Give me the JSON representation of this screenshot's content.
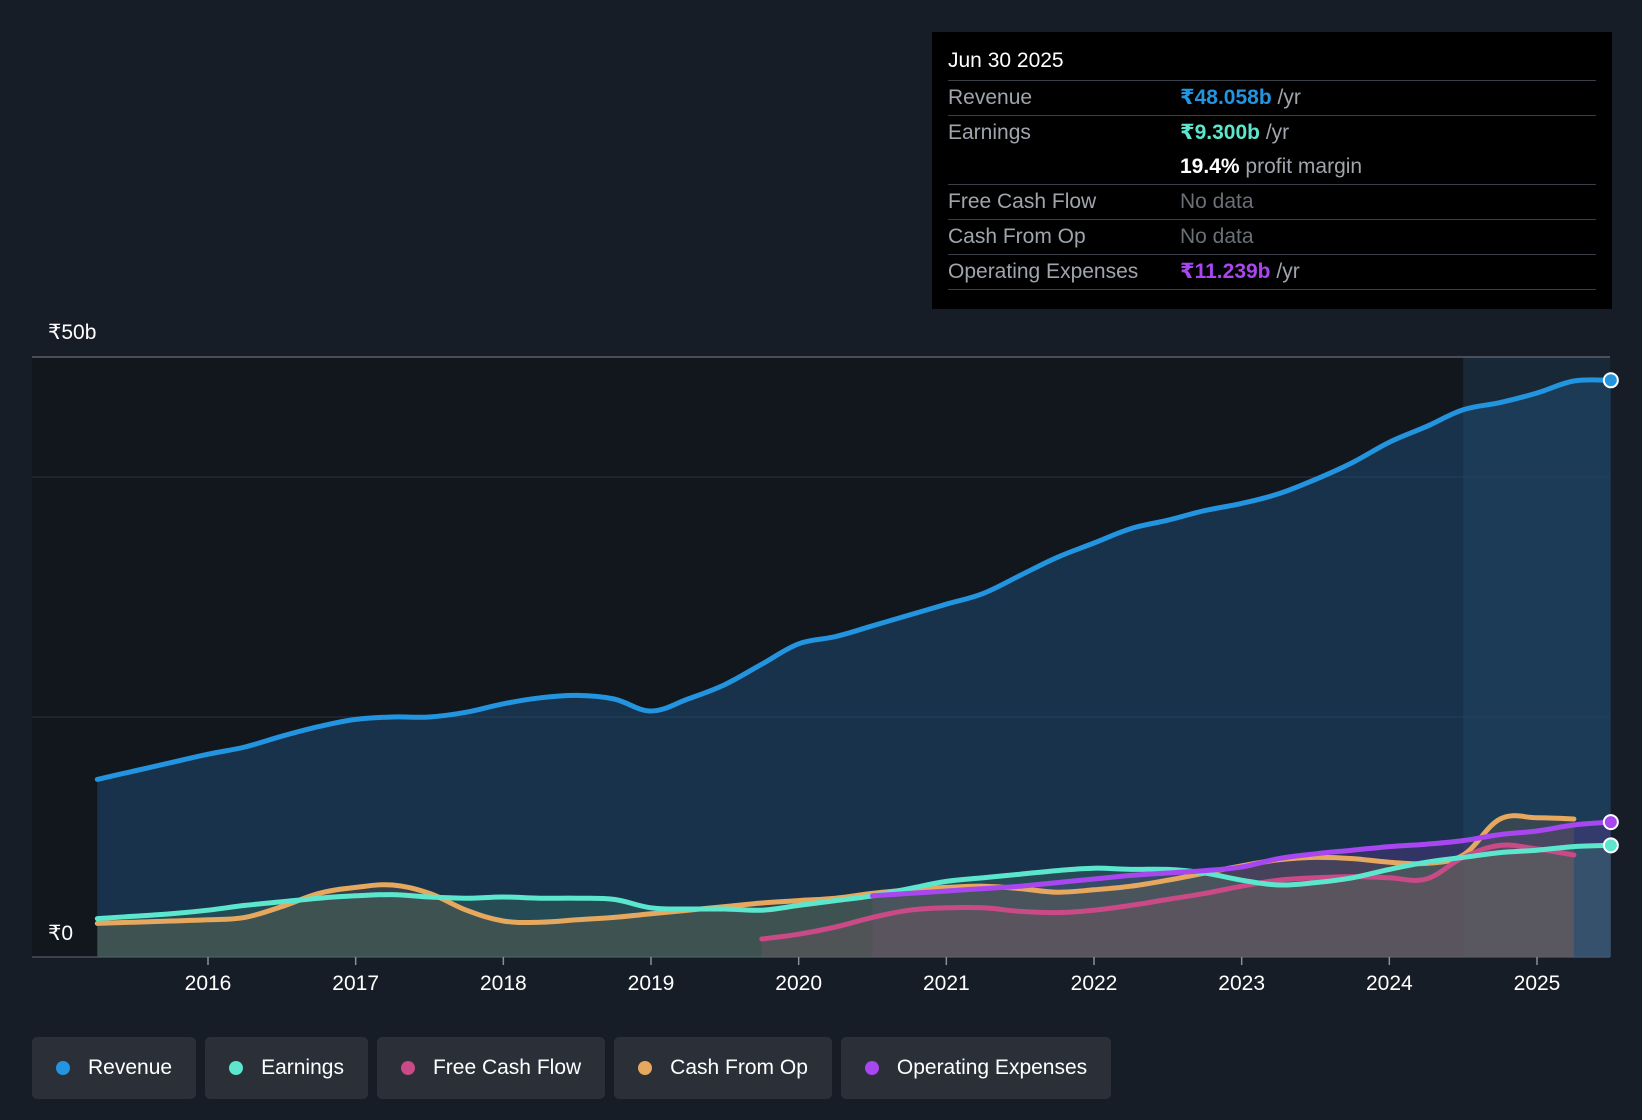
{
  "chart_data": {
    "type": "area",
    "title": "",
    "xlabel": "",
    "ylabel": "",
    "currency_symbol": "₹",
    "ylim": [
      0,
      50
    ],
    "y_tick_labels": [
      "₹50b",
      "₹0"
    ],
    "x_tick_labels": [
      "2016",
      "2017",
      "2018",
      "2019",
      "2020",
      "2021",
      "2022",
      "2023",
      "2024",
      "2025"
    ],
    "xlim": [
      2015.0,
      2025.5
    ],
    "gridlines": [
      0,
      20,
      40,
      50
    ],
    "highlight_range": [
      2024.5,
      2025.5
    ],
    "colors": {
      "Revenue": "#2394df",
      "Earnings": "#5ce6cd",
      "Free Cash Flow": "#c94a86",
      "Cash From Op": "#e5a85e",
      "Operating Expenses": "#a846f0"
    },
    "series": [
      {
        "name": "Revenue",
        "x": [
          2015.25,
          2015.5,
          2015.75,
          2016.0,
          2016.25,
          2016.5,
          2016.75,
          2017.0,
          2017.25,
          2017.5,
          2017.75,
          2018.0,
          2018.25,
          2018.5,
          2018.75,
          2019.0,
          2019.25,
          2019.5,
          2019.75,
          2020.0,
          2020.25,
          2020.5,
          2020.75,
          2021.0,
          2021.25,
          2021.5,
          2021.75,
          2022.0,
          2022.25,
          2022.5,
          2022.75,
          2023.0,
          2023.25,
          2023.5,
          2023.75,
          2024.0,
          2024.25,
          2024.5,
          2024.75,
          2025.0,
          2025.25,
          2025.5
        ],
        "values": [
          14.8,
          15.5,
          16.2,
          16.9,
          17.5,
          18.4,
          19.2,
          19.8,
          20.0,
          20.0,
          20.4,
          21.1,
          21.6,
          21.8,
          21.5,
          20.5,
          21.5,
          22.7,
          24.4,
          26.1,
          26.7,
          27.6,
          28.5,
          29.4,
          30.3,
          31.8,
          33.3,
          34.5,
          35.7,
          36.4,
          37.2,
          37.8,
          38.6,
          39.8,
          41.2,
          42.9,
          44.2,
          45.6,
          46.2,
          47.0,
          48.0,
          48.058
        ]
      },
      {
        "name": "Earnings",
        "x": [
          2015.25,
          2015.5,
          2015.75,
          2016.0,
          2016.25,
          2016.5,
          2016.75,
          2017.0,
          2017.25,
          2017.5,
          2017.75,
          2018.0,
          2018.25,
          2018.5,
          2018.75,
          2019.0,
          2019.25,
          2019.5,
          2019.75,
          2020.0,
          2020.25,
          2020.5,
          2020.75,
          2021.0,
          2021.25,
          2021.5,
          2021.75,
          2022.0,
          2022.25,
          2022.5,
          2022.75,
          2023.0,
          2023.25,
          2023.5,
          2023.75,
          2024.0,
          2024.25,
          2024.5,
          2024.75,
          2025.0,
          2025.25,
          2025.5
        ],
        "values": [
          3.2,
          3.4,
          3.6,
          3.9,
          4.3,
          4.6,
          4.9,
          5.1,
          5.2,
          5.0,
          4.9,
          5.0,
          4.9,
          4.9,
          4.8,
          4.1,
          4.0,
          4.0,
          3.9,
          4.3,
          4.7,
          5.1,
          5.7,
          6.3,
          6.6,
          6.9,
          7.2,
          7.4,
          7.3,
          7.3,
          7.0,
          6.4,
          6.0,
          6.2,
          6.6,
          7.3,
          7.9,
          8.3,
          8.7,
          8.9,
          9.2,
          9.3
        ]
      },
      {
        "name": "Free Cash Flow",
        "x": [
          2019.75,
          2020.0,
          2020.25,
          2020.5,
          2020.75,
          2021.0,
          2021.25,
          2021.5,
          2021.75,
          2022.0,
          2022.25,
          2022.5,
          2022.75,
          2023.0,
          2023.25,
          2023.5,
          2023.75,
          2024.0,
          2024.25,
          2024.5,
          2024.75,
          2025.0,
          2025.25
        ],
        "values": [
          1.5,
          1.9,
          2.5,
          3.3,
          3.9,
          4.1,
          4.1,
          3.8,
          3.7,
          3.9,
          4.3,
          4.8,
          5.3,
          5.9,
          6.4,
          6.6,
          6.7,
          6.6,
          6.5,
          8.3,
          9.3,
          9.0,
          8.5
        ]
      },
      {
        "name": "Cash From Op",
        "x": [
          2015.25,
          2015.5,
          2015.75,
          2016.0,
          2016.25,
          2016.5,
          2016.75,
          2017.0,
          2017.25,
          2017.5,
          2017.75,
          2018.0,
          2018.25,
          2018.5,
          2018.75,
          2019.0,
          2019.25,
          2019.5,
          2019.75,
          2020.0,
          2020.25,
          2020.5,
          2020.75,
          2021.0,
          2021.25,
          2021.5,
          2021.75,
          2022.0,
          2022.25,
          2022.5,
          2022.75,
          2023.0,
          2023.25,
          2023.5,
          2023.75,
          2024.0,
          2024.25,
          2024.5,
          2024.75,
          2025.0,
          2025.25
        ],
        "values": [
          2.8,
          2.9,
          3.0,
          3.1,
          3.3,
          4.2,
          5.3,
          5.8,
          6.0,
          5.3,
          3.9,
          3.0,
          2.9,
          3.1,
          3.3,
          3.6,
          3.9,
          4.2,
          4.5,
          4.7,
          4.9,
          5.3,
          5.6,
          5.8,
          5.9,
          5.7,
          5.4,
          5.6,
          5.9,
          6.4,
          7.0,
          7.6,
          8.1,
          8.3,
          8.2,
          7.9,
          7.8,
          8.5,
          11.5,
          11.6,
          11.5
        ]
      },
      {
        "name": "Operating Expenses",
        "x": [
          2020.5,
          2020.75,
          2021.0,
          2021.25,
          2021.5,
          2021.75,
          2022.0,
          2022.25,
          2022.5,
          2022.75,
          2023.0,
          2023.25,
          2023.5,
          2023.75,
          2024.0,
          2024.25,
          2024.5,
          2024.75,
          2025.0,
          2025.25,
          2025.5
        ],
        "values": [
          5.1,
          5.3,
          5.5,
          5.7,
          5.9,
          6.2,
          6.5,
          6.8,
          7.0,
          7.2,
          7.5,
          8.2,
          8.6,
          8.9,
          9.2,
          9.4,
          9.7,
          10.2,
          10.5,
          11.0,
          11.239
        ]
      }
    ]
  },
  "tooltip": {
    "date": "Jun 30 2025",
    "revenue_label": "Revenue",
    "revenue_value": "₹48.058b",
    "revenue_unit": "/yr",
    "earnings_label": "Earnings",
    "earnings_value": "₹9.300b",
    "earnings_unit": "/yr",
    "margin_value": "19.4%",
    "margin_label": "profit margin",
    "fcf_label": "Free Cash Flow",
    "fcf_value": "No data",
    "cfo_label": "Cash From Op",
    "cfo_value": "No data",
    "opex_label": "Operating Expenses",
    "opex_value": "₹11.239b",
    "opex_unit": "/yr"
  },
  "legend": [
    {
      "label": "Revenue",
      "color": "#2394df"
    },
    {
      "label": "Earnings",
      "color": "#5ce6cd"
    },
    {
      "label": "Free Cash Flow",
      "color": "#c94a86"
    },
    {
      "label": "Cash From Op",
      "color": "#e5a85e"
    },
    {
      "label": "Operating Expenses",
      "color": "#a846f0"
    }
  ]
}
